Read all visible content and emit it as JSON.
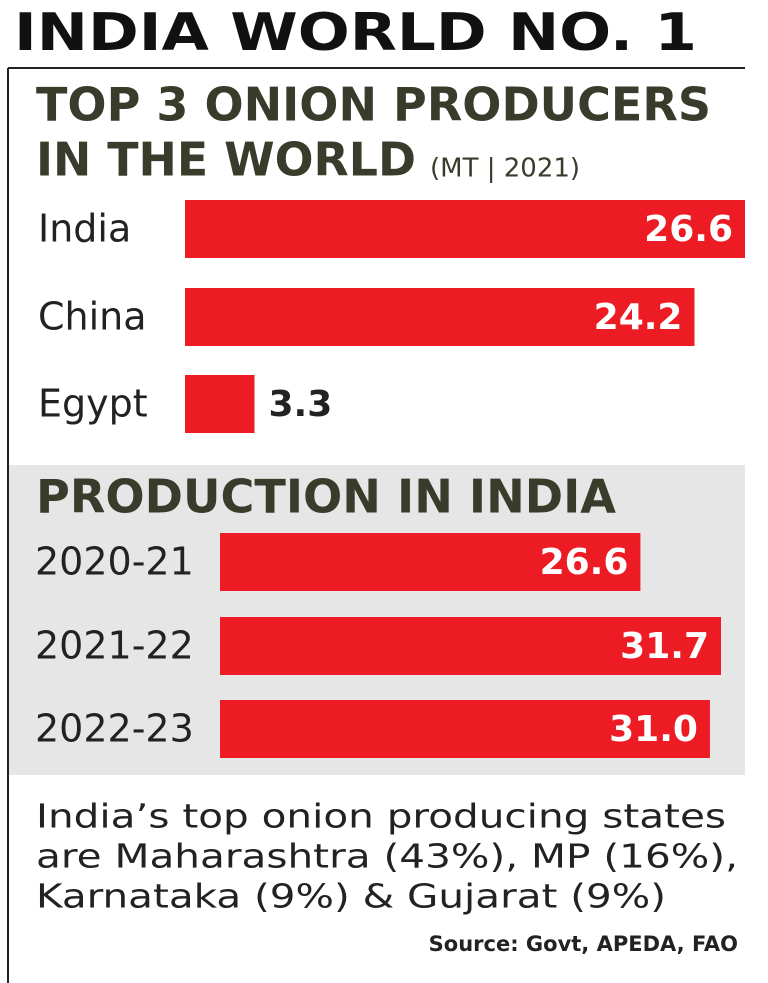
{
  "title": "INDIA WORLD NO. 1",
  "chart_data": [
    {
      "type": "bar",
      "orientation": "horizontal",
      "title": [
        "TOP 3 ONION PRODUCERS",
        "IN THE WORLD"
      ],
      "subtitle": "(MT | 2021)",
      "categories": [
        "India",
        "China",
        "Egypt"
      ],
      "values": [
        26.6,
        24.2,
        3.3
      ],
      "color": "#ed1c24"
    },
    {
      "type": "bar",
      "orientation": "horizontal",
      "title": [
        "PRODUCTION IN INDIA"
      ],
      "categories": [
        "2020-21",
        "2021-22",
        "2022-23"
      ],
      "values": [
        26.6,
        31.7,
        31.0
      ],
      "value_labels": [
        "26.6",
        "31.7",
        "31.0"
      ],
      "color": "#ed1c24"
    }
  ],
  "note": [
    "India’s top onion producing states",
    "are Maharashtra (43%), MP (16%),",
    "Karnataka (9%) & Gujarat (9%)"
  ],
  "source": "Source: Govt, APEDA, FAO"
}
